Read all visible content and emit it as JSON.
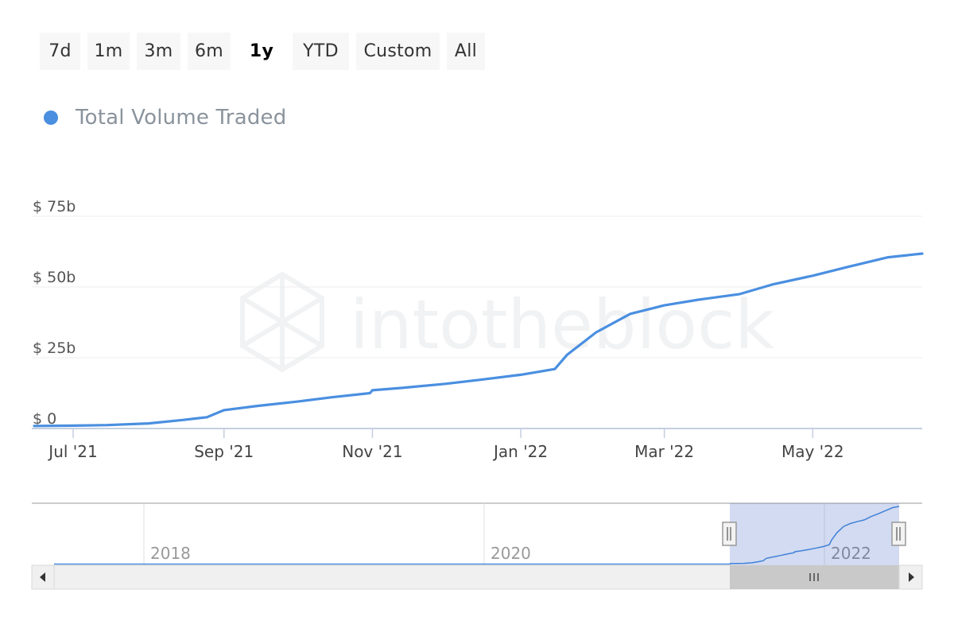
{
  "range_selector": {
    "buttons": [
      "7d",
      "1m",
      "3m",
      "6m",
      "1y",
      "YTD",
      "Custom",
      "All"
    ],
    "selected": "1y"
  },
  "legend": {
    "label": "Total Volume Traded",
    "color": "#4a8fe0"
  },
  "watermark": {
    "text": "intotheblock"
  },
  "chart_data": {
    "type": "line",
    "series": [
      {
        "name": "Total Volume Traded",
        "color": "#4a8fe0",
        "x": [
          "2021-06-15",
          "2021-07-01",
          "2021-07-15",
          "2021-08-01",
          "2021-08-15",
          "2021-08-25",
          "2021-09-01",
          "2021-09-15",
          "2021-10-01",
          "2021-10-15",
          "2021-10-31",
          "2021-11-01",
          "2021-11-15",
          "2021-12-01",
          "2021-12-15",
          "2022-01-01",
          "2022-01-15",
          "2022-01-20",
          "2022-02-01",
          "2022-02-15",
          "2022-03-01",
          "2022-03-15",
          "2022-04-01",
          "2022-04-15",
          "2022-05-01",
          "2022-05-15",
          "2022-06-01",
          "2022-06-15"
        ],
        "y": [
          0.9,
          1.0,
          1.2,
          1.8,
          3.0,
          4.0,
          6.5,
          8.0,
          9.5,
          11.0,
          12.5,
          13.5,
          14.5,
          15.8,
          17.2,
          19.0,
          21.0,
          26.0,
          34.0,
          40.5,
          43.5,
          45.5,
          47.5,
          51.0,
          54.0,
          57.0,
          60.5,
          61.8
        ]
      }
    ],
    "y_ticks": [
      "$ 0",
      "$ 25b",
      "$ 50b",
      "$ 75b"
    ],
    "ylim": [
      0,
      75
    ],
    "x_ticks": [
      "Jul '21",
      "Sep '21",
      "Nov '21",
      "Jan '22",
      "Mar '22",
      "May '22"
    ],
    "grid": true,
    "navigator": {
      "x_labels": [
        "2018",
        "2020",
        "2022"
      ],
      "selected_range": "1y"
    }
  }
}
